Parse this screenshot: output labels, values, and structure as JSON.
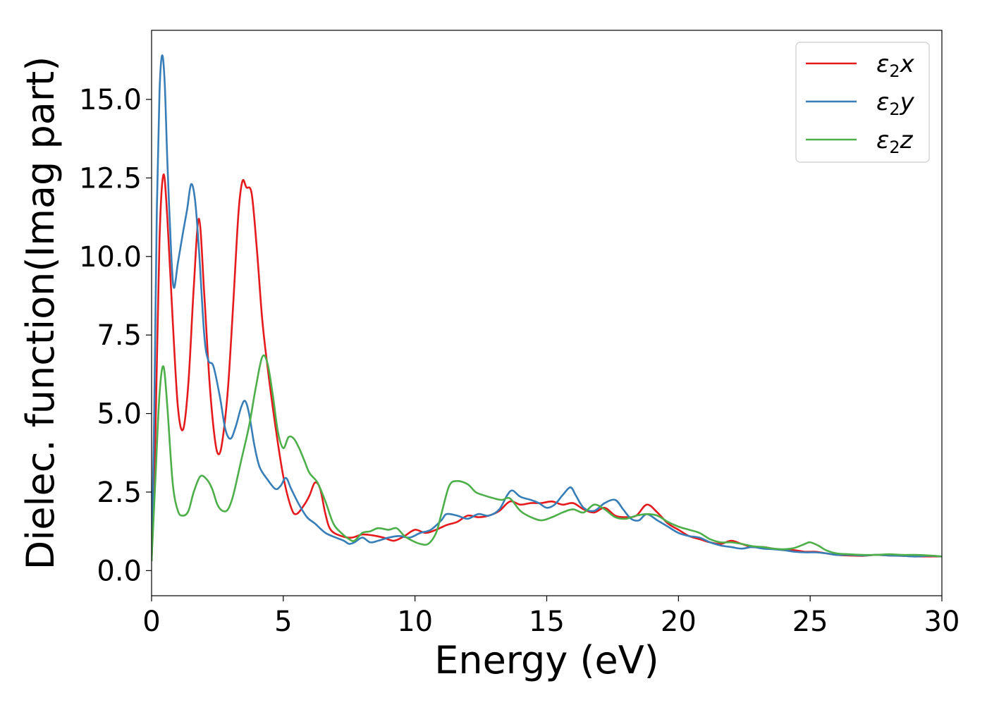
{
  "chart_data": {
    "type": "line",
    "title": "",
    "xlabel": "Energy (eV)",
    "ylabel": "Dielec. function(Imag part)",
    "xlim": [
      0,
      30
    ],
    "ylim": [
      -0.8,
      17.2
    ],
    "x_ticks": [
      "0",
      "5",
      "10",
      "15",
      "20",
      "25",
      "30"
    ],
    "y_ticks": [
      "0.0",
      "2.5",
      "5.0",
      "7.5",
      "10.0",
      "12.5",
      "15.0"
    ],
    "grid": false,
    "legend_position": "top-right",
    "series": [
      {
        "name": "ε₂x",
        "legend_base": "ε",
        "legend_sub": "2",
        "legend_suffix": "x",
        "color": "#e41a1c",
        "points": [
          [
            0,
            0.3
          ],
          [
            0.15,
            4.5
          ],
          [
            0.3,
            10.5
          ],
          [
            0.45,
            12.6
          ],
          [
            0.6,
            11.2
          ],
          [
            0.8,
            8.0
          ],
          [
            1.0,
            5.2
          ],
          [
            1.2,
            4.5
          ],
          [
            1.4,
            6.0
          ],
          [
            1.6,
            9.0
          ],
          [
            1.8,
            11.2
          ],
          [
            2.0,
            8.8
          ],
          [
            2.2,
            6.0
          ],
          [
            2.4,
            4.2
          ],
          [
            2.55,
            3.7
          ],
          [
            2.7,
            4.2
          ],
          [
            2.9,
            5.8
          ],
          [
            3.1,
            8.5
          ],
          [
            3.3,
            11.4
          ],
          [
            3.45,
            12.4
          ],
          [
            3.6,
            12.2
          ],
          [
            3.8,
            12.0
          ],
          [
            4.0,
            10.2
          ],
          [
            4.2,
            8.0
          ],
          [
            4.4,
            6.5
          ],
          [
            4.7,
            4.6
          ],
          [
            5.0,
            3.0
          ],
          [
            5.3,
            2.0
          ],
          [
            5.5,
            1.8
          ],
          [
            5.8,
            2.1
          ],
          [
            6.0,
            2.4
          ],
          [
            6.2,
            2.8
          ],
          [
            6.4,
            2.6
          ],
          [
            6.6,
            1.8
          ],
          [
            6.8,
            1.3
          ],
          [
            7.2,
            1.1
          ],
          [
            7.6,
            1.05
          ],
          [
            8.0,
            1.15
          ],
          [
            8.4,
            1.12
          ],
          [
            8.8,
            1.05
          ],
          [
            9.2,
            0.95
          ],
          [
            9.6,
            1.1
          ],
          [
            10.0,
            1.3
          ],
          [
            10.4,
            1.2
          ],
          [
            10.8,
            1.3
          ],
          [
            11.2,
            1.45
          ],
          [
            11.6,
            1.55
          ],
          [
            12.0,
            1.75
          ],
          [
            12.4,
            1.7
          ],
          [
            12.8,
            1.75
          ],
          [
            13.2,
            1.9
          ],
          [
            13.6,
            2.2
          ],
          [
            14.0,
            2.1
          ],
          [
            14.4,
            2.15
          ],
          [
            14.8,
            2.15
          ],
          [
            15.2,
            2.2
          ],
          [
            15.6,
            2.1
          ],
          [
            16.0,
            2.15
          ],
          [
            16.4,
            1.95
          ],
          [
            16.8,
            1.85
          ],
          [
            17.2,
            2.0
          ],
          [
            17.6,
            1.75
          ],
          [
            18.0,
            1.7
          ],
          [
            18.4,
            1.75
          ],
          [
            18.8,
            2.1
          ],
          [
            19.2,
            1.85
          ],
          [
            19.6,
            1.5
          ],
          [
            20.0,
            1.3
          ],
          [
            20.4,
            1.1
          ],
          [
            20.8,
            1.0
          ],
          [
            21.2,
            0.9
          ],
          [
            21.6,
            0.85
          ],
          [
            22.0,
            0.95
          ],
          [
            22.4,
            0.85
          ],
          [
            22.8,
            0.75
          ],
          [
            23.2,
            0.75
          ],
          [
            23.6,
            0.7
          ],
          [
            24.0,
            0.65
          ],
          [
            24.4,
            0.65
          ],
          [
            24.8,
            0.6
          ],
          [
            25.2,
            0.6
          ],
          [
            25.6,
            0.55
          ],
          [
            26.0,
            0.5
          ],
          [
            26.5,
            0.48
          ],
          [
            27.0,
            0.47
          ],
          [
            27.5,
            0.5
          ],
          [
            28.0,
            0.48
          ],
          [
            28.5,
            0.47
          ],
          [
            29.0,
            0.45
          ],
          [
            29.5,
            0.45
          ],
          [
            30.0,
            0.45
          ]
        ]
      },
      {
        "name": "ε₂y",
        "legend_base": "ε",
        "legend_sub": "2",
        "legend_suffix": "y",
        "color": "#377eb8",
        "points": [
          [
            0,
            0.3
          ],
          [
            0.1,
            5.0
          ],
          [
            0.2,
            11.5
          ],
          [
            0.3,
            15.2
          ],
          [
            0.4,
            16.4
          ],
          [
            0.5,
            15.5
          ],
          [
            0.6,
            13.0
          ],
          [
            0.75,
            10.0
          ],
          [
            0.85,
            9.0
          ],
          [
            1.0,
            9.8
          ],
          [
            1.2,
            10.8
          ],
          [
            1.35,
            11.5
          ],
          [
            1.5,
            12.3
          ],
          [
            1.65,
            11.8
          ],
          [
            1.8,
            10.2
          ],
          [
            2.0,
            7.5
          ],
          [
            2.15,
            6.7
          ],
          [
            2.35,
            6.5
          ],
          [
            2.6,
            5.5
          ],
          [
            2.8,
            4.5
          ],
          [
            3.0,
            4.2
          ],
          [
            3.2,
            4.6
          ],
          [
            3.4,
            5.2
          ],
          [
            3.55,
            5.4
          ],
          [
            3.7,
            5.0
          ],
          [
            3.9,
            4.0
          ],
          [
            4.1,
            3.3
          ],
          [
            4.4,
            2.9
          ],
          [
            4.7,
            2.6
          ],
          [
            4.9,
            2.7
          ],
          [
            5.1,
            2.95
          ],
          [
            5.3,
            2.6
          ],
          [
            5.6,
            2.1
          ],
          [
            5.9,
            1.7
          ],
          [
            6.2,
            1.5
          ],
          [
            6.6,
            1.2
          ],
          [
            7.0,
            1.05
          ],
          [
            7.3,
            0.95
          ],
          [
            7.5,
            0.85
          ],
          [
            7.7,
            0.9
          ],
          [
            8.0,
            1.05
          ],
          [
            8.3,
            0.9
          ],
          [
            8.6,
            0.95
          ],
          [
            9.0,
            1.05
          ],
          [
            9.4,
            1.1
          ],
          [
            9.8,
            1.05
          ],
          [
            10.2,
            1.2
          ],
          [
            10.6,
            1.3
          ],
          [
            11.0,
            1.6
          ],
          [
            11.2,
            1.8
          ],
          [
            11.6,
            1.75
          ],
          [
            12.0,
            1.65
          ],
          [
            12.4,
            1.8
          ],
          [
            12.8,
            1.75
          ],
          [
            13.2,
            1.95
          ],
          [
            13.5,
            2.4
          ],
          [
            13.7,
            2.55
          ],
          [
            14.0,
            2.35
          ],
          [
            14.4,
            2.25
          ],
          [
            14.7,
            2.15
          ],
          [
            15.0,
            2.0
          ],
          [
            15.3,
            2.1
          ],
          [
            15.6,
            2.4
          ],
          [
            15.9,
            2.65
          ],
          [
            16.1,
            2.4
          ],
          [
            16.4,
            2.0
          ],
          [
            16.8,
            1.9
          ],
          [
            17.2,
            2.15
          ],
          [
            17.6,
            2.25
          ],
          [
            17.9,
            1.95
          ],
          [
            18.2,
            1.65
          ],
          [
            18.5,
            1.6
          ],
          [
            18.8,
            1.8
          ],
          [
            19.2,
            1.6
          ],
          [
            19.6,
            1.4
          ],
          [
            20.0,
            1.2
          ],
          [
            20.4,
            1.1
          ],
          [
            20.8,
            1.05
          ],
          [
            21.2,
            0.9
          ],
          [
            21.6,
            0.8
          ],
          [
            22.0,
            0.75
          ],
          [
            22.4,
            0.7
          ],
          [
            22.8,
            0.75
          ],
          [
            23.2,
            0.7
          ],
          [
            23.6,
            0.68
          ],
          [
            24.0,
            0.65
          ],
          [
            24.4,
            0.6
          ],
          [
            24.8,
            0.58
          ],
          [
            25.2,
            0.58
          ],
          [
            25.6,
            0.55
          ],
          [
            26.0,
            0.5
          ],
          [
            26.5,
            0.5
          ],
          [
            27.0,
            0.48
          ],
          [
            27.5,
            0.5
          ],
          [
            28.0,
            0.48
          ],
          [
            28.5,
            0.47
          ],
          [
            29.0,
            0.45
          ],
          [
            29.5,
            0.47
          ],
          [
            30.0,
            0.45
          ]
        ]
      },
      {
        "name": "ε₂z",
        "legend_base": "ε",
        "legend_sub": "2",
        "legend_suffix": "z",
        "color": "#4daf4a",
        "points": [
          [
            0,
            0.3
          ],
          [
            0.15,
            3.0
          ],
          [
            0.3,
            5.6
          ],
          [
            0.45,
            6.5
          ],
          [
            0.6,
            5.2
          ],
          [
            0.8,
            2.8
          ],
          [
            1.0,
            1.9
          ],
          [
            1.2,
            1.75
          ],
          [
            1.4,
            1.9
          ],
          [
            1.6,
            2.5
          ],
          [
            1.85,
            3.0
          ],
          [
            2.1,
            2.9
          ],
          [
            2.3,
            2.6
          ],
          [
            2.5,
            2.1
          ],
          [
            2.7,
            1.9
          ],
          [
            2.9,
            1.95
          ],
          [
            3.1,
            2.4
          ],
          [
            3.4,
            3.5
          ],
          [
            3.7,
            4.6
          ],
          [
            3.95,
            5.8
          ],
          [
            4.2,
            6.8
          ],
          [
            4.4,
            6.6
          ],
          [
            4.6,
            5.6
          ],
          [
            4.8,
            4.4
          ],
          [
            5.0,
            3.9
          ],
          [
            5.2,
            4.25
          ],
          [
            5.4,
            4.2
          ],
          [
            5.6,
            3.9
          ],
          [
            5.8,
            3.5
          ],
          [
            6.0,
            3.1
          ],
          [
            6.3,
            2.8
          ],
          [
            6.6,
            2.2
          ],
          [
            6.9,
            1.5
          ],
          [
            7.2,
            1.2
          ],
          [
            7.5,
            1.0
          ],
          [
            7.7,
            0.95
          ],
          [
            8.0,
            1.2
          ],
          [
            8.3,
            1.25
          ],
          [
            8.6,
            1.35
          ],
          [
            9.0,
            1.3
          ],
          [
            9.3,
            1.35
          ],
          [
            9.6,
            1.1
          ],
          [
            9.9,
            0.95
          ],
          [
            10.2,
            0.85
          ],
          [
            10.5,
            0.85
          ],
          [
            10.8,
            1.2
          ],
          [
            11.0,
            1.8
          ],
          [
            11.3,
            2.7
          ],
          [
            11.6,
            2.85
          ],
          [
            12.0,
            2.75
          ],
          [
            12.3,
            2.5
          ],
          [
            12.6,
            2.4
          ],
          [
            13.0,
            2.3
          ],
          [
            13.3,
            2.25
          ],
          [
            13.6,
            2.3
          ],
          [
            14.0,
            1.9
          ],
          [
            14.4,
            1.7
          ],
          [
            14.8,
            1.6
          ],
          [
            15.2,
            1.7
          ],
          [
            15.6,
            1.85
          ],
          [
            16.0,
            1.95
          ],
          [
            16.4,
            1.85
          ],
          [
            16.8,
            2.1
          ],
          [
            17.2,
            1.95
          ],
          [
            17.6,
            1.7
          ],
          [
            18.0,
            1.65
          ],
          [
            18.4,
            1.75
          ],
          [
            18.8,
            1.8
          ],
          [
            19.2,
            1.75
          ],
          [
            19.6,
            1.55
          ],
          [
            20.0,
            1.4
          ],
          [
            20.4,
            1.3
          ],
          [
            20.8,
            1.2
          ],
          [
            21.2,
            1.0
          ],
          [
            21.6,
            0.9
          ],
          [
            22.0,
            0.9
          ],
          [
            22.4,
            0.85
          ],
          [
            22.8,
            0.78
          ],
          [
            23.2,
            0.75
          ],
          [
            23.6,
            0.7
          ],
          [
            24.0,
            0.68
          ],
          [
            24.4,
            0.72
          ],
          [
            24.8,
            0.85
          ],
          [
            25.0,
            0.9
          ],
          [
            25.3,
            0.8
          ],
          [
            25.6,
            0.65
          ],
          [
            26.0,
            0.55
          ],
          [
            26.5,
            0.52
          ],
          [
            27.0,
            0.5
          ],
          [
            27.5,
            0.5
          ],
          [
            28.0,
            0.52
          ],
          [
            28.5,
            0.5
          ],
          [
            29.0,
            0.5
          ],
          [
            29.5,
            0.48
          ],
          [
            30.0,
            0.45
          ]
        ]
      }
    ]
  }
}
